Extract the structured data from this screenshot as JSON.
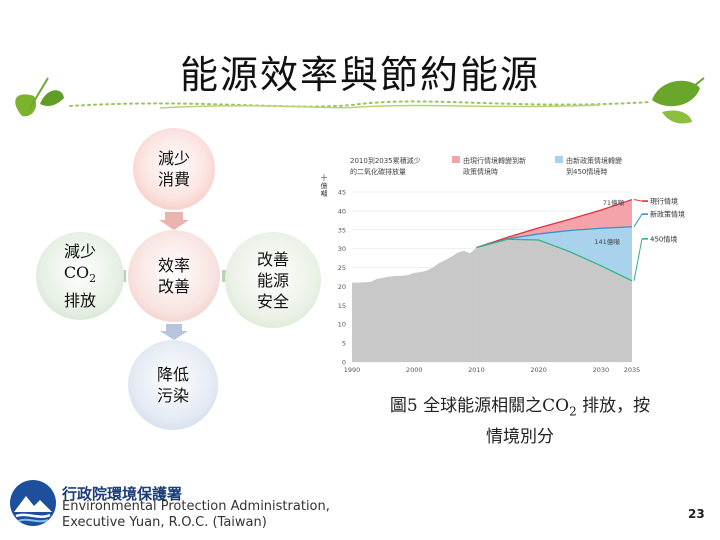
{
  "slide": {
    "title": "能源效率與節約能源",
    "page_number": "23"
  },
  "diagram": {
    "top": [
      "減少",
      "消費"
    ],
    "center": [
      "效率",
      "改善"
    ],
    "left": [
      "減少",
      "CO",
      "2",
      "排放"
    ],
    "right": [
      "改善",
      "能源",
      "安全"
    ],
    "bottom": [
      "降低",
      "污染"
    ]
  },
  "caption": {
    "line1_pre": "圖5 全球能源相關之CO",
    "line1_sub": "2",
    "line1_post": " 排放，按",
    "line2": "情境別分"
  },
  "footer": {
    "org_name": "行政院環境保護署",
    "english_line1": "Environmental Protection Administration,",
    "english_line2": "Executive Yuan, R.O.C. (Taiwan)"
  },
  "chart_data": {
    "type": "area",
    "ylabel_chars": [
      "十",
      "億",
      "噸"
    ],
    "header_left": [
      "2010到2035累積減少",
      "的二氧化碳排放量"
    ],
    "header_mid": [
      "由現行情境轉變到新",
      "政策情境時"
    ],
    "header_right": [
      "由新政策情境轉變",
      "到450情境時"
    ],
    "x_ticks": [
      1990,
      2000,
      2010,
      2020,
      2030,
      2035
    ],
    "y_ticks": [
      0,
      5,
      10,
      15,
      20,
      25,
      30,
      35,
      40,
      45
    ],
    "xlim": [
      1990,
      2035
    ],
    "ylim": [
      0,
      45
    ],
    "annotations": [
      {
        "text": "71億噸",
        "x": 2032,
        "y": 41.5
      },
      {
        "text": "141億噸",
        "x": 2031,
        "y": 31.2
      }
    ],
    "legend": [
      "現行情境",
      "新政策情境",
      "450情境"
    ],
    "colors": {
      "history": "#c8c8c8",
      "current_area": "#f5a3ab",
      "new_policy_area": "#a9d2ec",
      "current_line": "#e0303e",
      "new_policy_line": "#3a8fc8",
      "s450_line": "#2fb487"
    },
    "history": {
      "x": [
        1990,
        1991,
        1992,
        1993,
        1994,
        1995,
        1996,
        1997,
        1998,
        1999,
        2000,
        2001,
        2002,
        2003,
        2004,
        2005,
        2006,
        2007,
        2008,
        2009,
        2010
      ],
      "y": [
        21.0,
        21.0,
        21.1,
        21.2,
        22.0,
        22.3,
        22.6,
        22.8,
        22.8,
        23.0,
        23.6,
        23.8,
        24.2,
        25.0,
        26.2,
        27.0,
        27.9,
        29.0,
        29.4,
        28.8,
        30.3
      ]
    },
    "series": [
      {
        "name": "現行情境",
        "x": [
          2010,
          2015,
          2020,
          2025,
          2030,
          2035
        ],
        "y": [
          30.3,
          33.0,
          35.5,
          37.8,
          40.2,
          43.0
        ]
      },
      {
        "name": "新政策情境",
        "x": [
          2010,
          2015,
          2020,
          2025,
          2030,
          2035
        ],
        "y": [
          30.3,
          32.6,
          33.9,
          34.8,
          35.4,
          35.8
        ]
      },
      {
        "name": "450情境",
        "x": [
          2010,
          2015,
          2020,
          2025,
          2030,
          2035
        ],
        "y": [
          30.3,
          32.5,
          32.3,
          29.2,
          25.5,
          21.5
        ]
      }
    ]
  }
}
